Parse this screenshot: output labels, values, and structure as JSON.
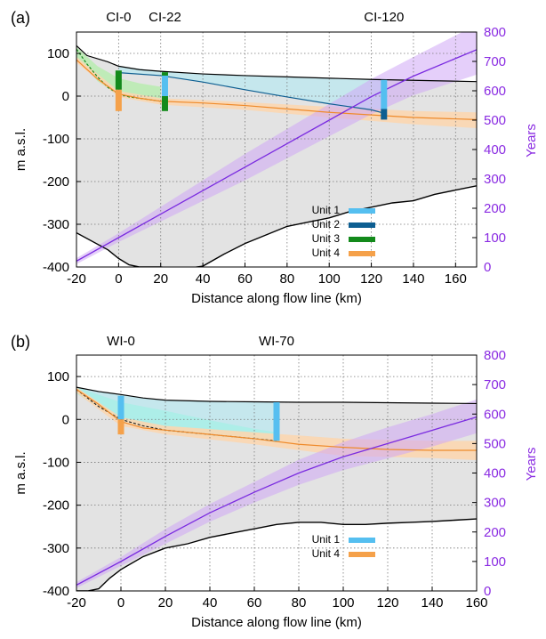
{
  "colors": {
    "surface_band": "#bfe8ee",
    "bed_fill": "#e3e3e3",
    "unit1": "#55bff0",
    "unit2": "#0d5e91",
    "unit3": "#138a1b",
    "unit4": "#f5a14a",
    "age": "#7a2be0",
    "age_band": "#cfa7f5",
    "green_band": "#b8ecb0",
    "cyan_band": "#a8eee6",
    "orange_band": "#fbd6b0"
  },
  "chart_data": [
    {
      "panel_label": "(a)",
      "type": "line",
      "xlabel": "Distance along flow line (km)",
      "ylabel": "m a.s.l.",
      "y2label": "Years",
      "xlim": [
        -20,
        170
      ],
      "xticks": [
        "-20",
        "0",
        "20",
        "40",
        "60",
        "80",
        "100",
        "120",
        "140",
        "160"
      ],
      "xtick_values": [
        -20,
        0,
        20,
        40,
        60,
        80,
        100,
        120,
        140,
        160
      ],
      "ylim": [
        -400,
        150
      ],
      "yticks": [
        "100",
        "0",
        "-100",
        "-200",
        "-300",
        "-400"
      ],
      "ytick_values": [
        100,
        0,
        -100,
        -200,
        -300,
        -400
      ],
      "y2lim": [
        0,
        800
      ],
      "y2ticks": [
        "800",
        "700",
        "600",
        "500",
        "400",
        "300",
        "200",
        "100",
        "0"
      ],
      "y2tick_values": [
        800,
        700,
        600,
        500,
        400,
        300,
        200,
        100,
        0
      ],
      "grid": true,
      "sites": [
        {
          "label": "CI-0",
          "x": 0
        },
        {
          "label": "CI-22",
          "x": 22
        },
        {
          "label": "CI-120",
          "x": 126
        }
      ],
      "surface": {
        "x": [
          -20,
          -15,
          -5,
          0,
          10,
          20,
          40,
          60,
          80,
          100,
          120,
          140,
          170
        ],
        "y": [
          118,
          95,
          80,
          70,
          62,
          58,
          52,
          48,
          45,
          42,
          39,
          37,
          34
        ]
      },
      "bed": {
        "x": [
          -20,
          -5,
          0,
          5,
          10,
          20,
          30,
          40,
          50,
          60,
          70,
          80,
          90,
          100,
          110,
          120,
          130,
          140,
          150,
          160,
          170
        ],
        "y": [
          -320,
          -360,
          -380,
          -395,
          -400,
          -400,
          -405,
          -398,
          -370,
          -345,
          -325,
          -305,
          -295,
          -285,
          -270,
          -260,
          -250,
          -245,
          -230,
          -220,
          -210
        ]
      },
      "unit2_horizon": {
        "x": [
          0,
          20,
          40,
          60,
          80,
          100,
          120,
          126
        ],
        "y": [
          55,
          48,
          33,
          15,
          -2,
          -18,
          -32,
          -40
        ]
      },
      "unit3_horizon": {
        "x": [
          -20,
          -15,
          -10,
          -5,
          0,
          5,
          10,
          20
        ],
        "y": [
          110,
          75,
          45,
          20,
          5,
          -2,
          -5,
          -12
        ]
      },
      "unit3_band_upper": {
        "x": [
          -20,
          -10,
          0,
          10,
          20
        ],
        "y": [
          115,
          70,
          42,
          30,
          22
        ]
      },
      "unit3_band_lower": {
        "x": [
          -20,
          -10,
          0,
          10,
          20
        ],
        "y": [
          90,
          35,
          2,
          -8,
          -15
        ]
      },
      "unit4_horizon": {
        "x": [
          -20,
          -10,
          0,
          10,
          20,
          40,
          60,
          80,
          100,
          120,
          140,
          170
        ],
        "y": [
          85,
          40,
          5,
          -5,
          -12,
          -16,
          -22,
          -30,
          -38,
          -44,
          -50,
          -55
        ]
      },
      "unit4_band_upper": {
        "x": [
          -20,
          0,
          20,
          60,
          100,
          140,
          170
        ],
        "y": [
          92,
          12,
          -5,
          -14,
          -25,
          -35,
          -38
        ]
      },
      "unit4_band_lower": {
        "x": [
          -20,
          0,
          20,
          60,
          100,
          140,
          170
        ],
        "y": [
          78,
          -2,
          -20,
          -32,
          -50,
          -66,
          -75
        ]
      },
      "age_curve": {
        "x": [
          -20,
          0,
          20,
          40,
          60,
          80,
          100,
          120,
          140,
          170
        ],
        "y": [
          20,
          100,
          180,
          260,
          340,
          420,
          500,
          580,
          650,
          740
        ]
      },
      "age_band_upper": {
        "x": [
          -20,
          0,
          20,
          40,
          60,
          80,
          100,
          120,
          140,
          170
        ],
        "y": [
          30,
          115,
          205,
          295,
          385,
          470,
          555,
          640,
          715,
          825
        ]
      },
      "age_band_lower": {
        "x": [
          -20,
          0,
          20,
          40,
          60,
          80,
          100,
          120,
          140,
          170
        ],
        "y": [
          10,
          85,
          155,
          225,
          295,
          370,
          445,
          520,
          585,
          655
        ]
      },
      "bars": [
        {
          "unit": "Unit 3",
          "x": 0,
          "y_low": 15,
          "y_high": 60
        },
        {
          "unit": "Unit 4",
          "x": 0,
          "y_low": -35,
          "y_high": 15
        },
        {
          "unit": "Unit 1",
          "x": 22,
          "y_low": 0,
          "y_high": 55
        },
        {
          "unit": "Unit 3",
          "x": 22,
          "y_low": -35,
          "y_high": 0
        },
        {
          "unit": "Unit 3",
          "x": 22,
          "y_low": 48,
          "y_high": 56
        },
        {
          "unit": "Unit 1",
          "x": 126,
          "y_low": -30,
          "y_high": 38
        },
        {
          "unit": "Unit 2",
          "x": 126,
          "y_low": -55,
          "y_high": -30
        }
      ],
      "legend": [
        "Unit 1",
        "Unit 2",
        "Unit 3",
        "Unit 4"
      ],
      "legend_placement": "bottom-center"
    },
    {
      "panel_label": "(b)",
      "type": "line",
      "xlabel": "Distance along flow line (km)",
      "ylabel": "m a.s.l.",
      "y2label": "Years",
      "xlim": [
        -20,
        160
      ],
      "xticks": [
        "-20",
        "0",
        "20",
        "40",
        "60",
        "80",
        "100",
        "120",
        "140",
        "160"
      ],
      "xtick_values": [
        -20,
        0,
        20,
        40,
        60,
        80,
        100,
        120,
        140,
        160
      ],
      "ylim": [
        -400,
        150
      ],
      "yticks": [
        "100",
        "0",
        "-100",
        "-200",
        "-300",
        "-400"
      ],
      "ytick_values": [
        100,
        0,
        -100,
        -200,
        -300,
        -400
      ],
      "y2lim": [
        0,
        800
      ],
      "y2ticks": [
        "800",
        "700",
        "600",
        "500",
        "400",
        "300",
        "200",
        "100",
        "0"
      ],
      "y2tick_values": [
        800,
        700,
        600,
        500,
        400,
        300,
        200,
        100,
        0
      ],
      "grid": true,
      "sites": [
        {
          "label": "WI-0",
          "x": 0
        },
        {
          "label": "WI-70",
          "x": 70
        }
      ],
      "surface": {
        "x": [
          -20,
          -10,
          0,
          10,
          20,
          40,
          60,
          80,
          100,
          120,
          140,
          160
        ],
        "y": [
          75,
          65,
          58,
          50,
          45,
          42,
          41,
          40,
          40,
          39,
          38,
          37
        ]
      },
      "bed": {
        "x": [
          -20,
          -15,
          -10,
          -5,
          0,
          10,
          20,
          30,
          40,
          50,
          60,
          70,
          80,
          90,
          100,
          110,
          120,
          130,
          140,
          150,
          160
        ],
        "y": [
          -400,
          -400,
          -395,
          -370,
          -350,
          -320,
          -300,
          -290,
          -275,
          -265,
          -255,
          -245,
          -240,
          -240,
          -245,
          -245,
          -242,
          -240,
          -238,
          -235,
          -232
        ]
      },
      "unit1_horizon": {
        "x": [
          -20,
          -10,
          0,
          10,
          20,
          30,
          40,
          50,
          60,
          70
        ],
        "y": [
          70,
          30,
          0,
          -15,
          -25,
          -30,
          -35,
          -40,
          -45,
          -50
        ]
      },
      "unit1_band_upper": {
        "x": [
          -20,
          0,
          20,
          40,
          60,
          70
        ],
        "y": [
          75,
          40,
          20,
          -2,
          -22,
          -30
        ]
      },
      "unit1_band_lower": {
        "x": [
          -20,
          0,
          20,
          40,
          60,
          70
        ],
        "y": [
          60,
          -5,
          -30,
          -40,
          -48,
          -55
        ]
      },
      "unit4_horizon": {
        "x": [
          -20,
          -10,
          0,
          10,
          20,
          40,
          60,
          80,
          100,
          120,
          140,
          160
        ],
        "y": [
          70,
          35,
          -5,
          -20,
          -25,
          -35,
          -45,
          -58,
          -65,
          -70,
          -72,
          -72
        ]
      },
      "unit4_band_upper": {
        "x": [
          -20,
          0,
          20,
          60,
          100,
          140,
          160
        ],
        "y": [
          75,
          5,
          -15,
          -30,
          -45,
          -50,
          -50
        ]
      },
      "unit4_band_lower": {
        "x": [
          -20,
          0,
          20,
          60,
          100,
          140,
          160
        ],
        "y": [
          62,
          -15,
          -35,
          -58,
          -85,
          -90,
          -95
        ]
      },
      "age_curve": {
        "x": [
          -20,
          0,
          20,
          40,
          60,
          80,
          100,
          120,
          140,
          160
        ],
        "y": [
          20,
          100,
          185,
          265,
          335,
          400,
          455,
          500,
          545,
          590
        ]
      },
      "age_band_upper": {
        "x": [
          -20,
          0,
          20,
          40,
          60,
          80,
          100,
          120,
          140,
          160
        ],
        "y": [
          30,
          115,
          210,
          295,
          370,
          445,
          505,
          555,
          600,
          650
        ]
      },
      "age_band_lower": {
        "x": [
          -20,
          0,
          20,
          40,
          60,
          80,
          100,
          120,
          140,
          160
        ],
        "y": [
          10,
          85,
          160,
          235,
          300,
          360,
          410,
          450,
          490,
          535
        ]
      },
      "bars": [
        {
          "unit": "Unit 1",
          "x": 0,
          "y_low": 0,
          "y_high": 55
        },
        {
          "unit": "Unit 4",
          "x": 0,
          "y_low": -35,
          "y_high": 0
        },
        {
          "unit": "Unit 1",
          "x": 70,
          "y_low": -50,
          "y_high": 40
        }
      ],
      "legend": [
        "Unit 1",
        "Unit 4"
      ],
      "legend_placement": "bottom-center"
    }
  ]
}
